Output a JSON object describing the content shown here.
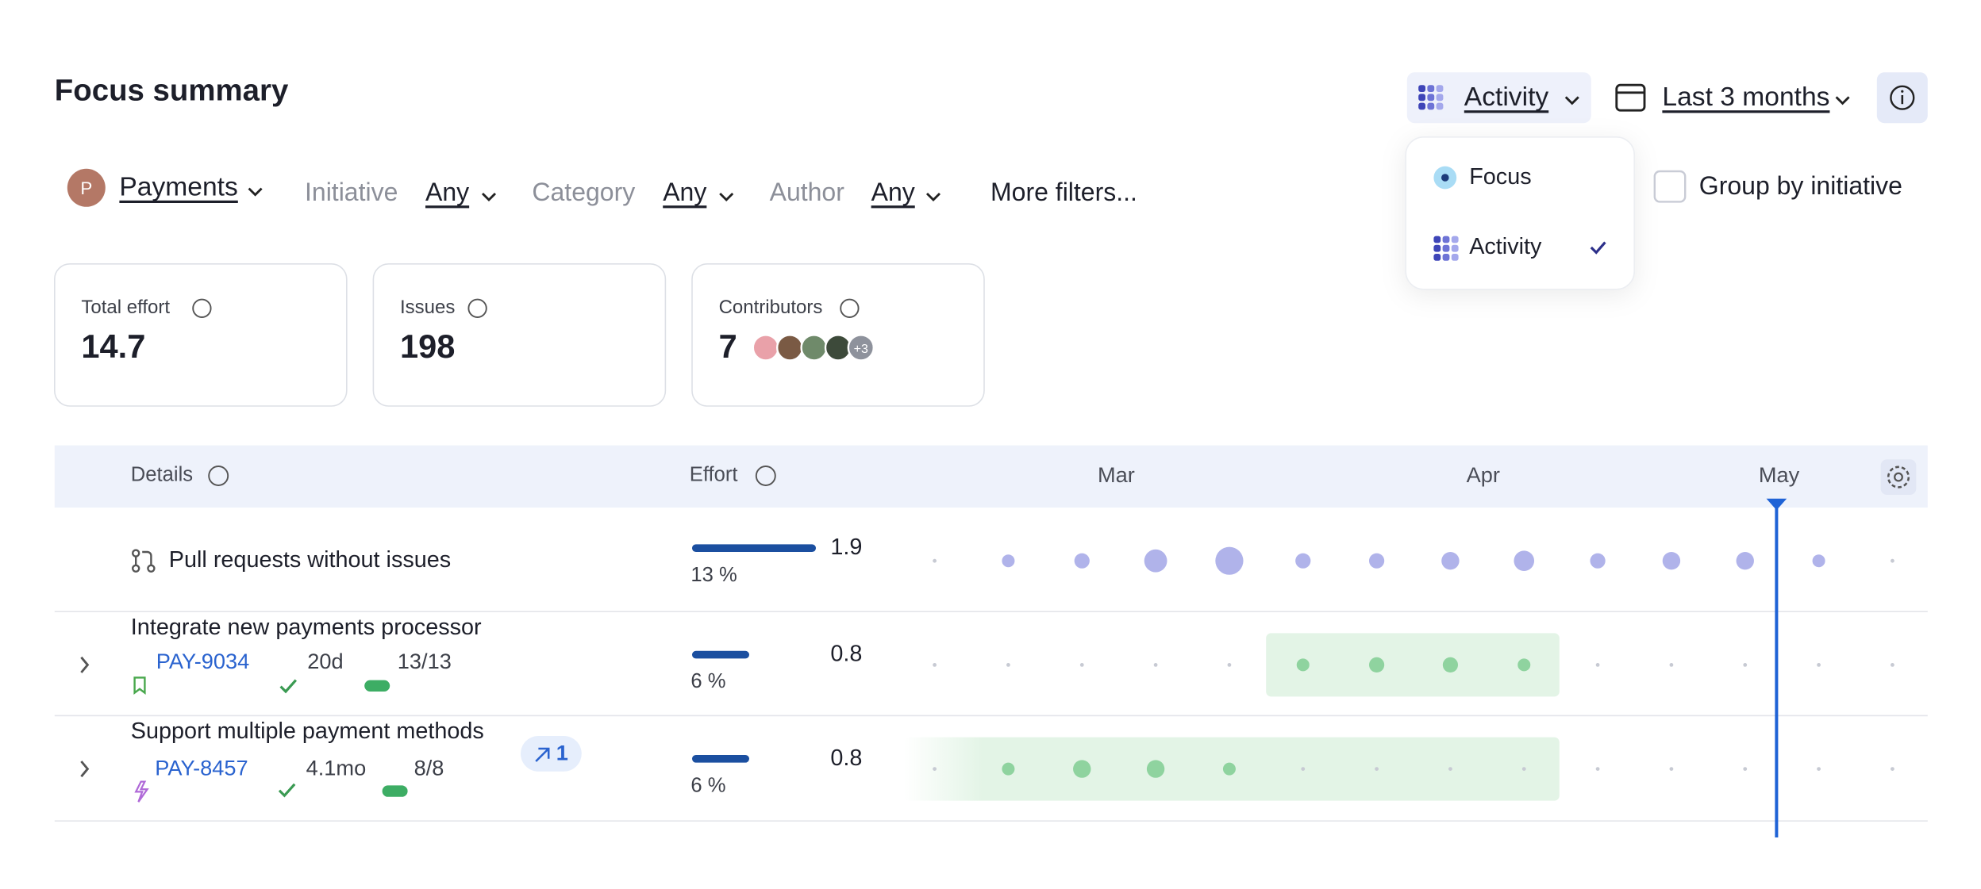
{
  "header": {
    "title": "Focus summary",
    "view": "Activity",
    "date_range": "Last 3 months"
  },
  "view_menu": {
    "items": [
      {
        "label": "Focus",
        "selected": false
      },
      {
        "label": "Activity",
        "selected": true
      }
    ]
  },
  "group_by": {
    "label": "Group by initiative",
    "checked": false
  },
  "filters": {
    "team_initial": "P",
    "team": "Payments",
    "items": [
      {
        "label": "Initiative",
        "value": "Any"
      },
      {
        "label": "Category",
        "value": "Any"
      },
      {
        "label": "Author",
        "value": "Any"
      }
    ],
    "more": "More filters..."
  },
  "stats": [
    {
      "label": "Total effort",
      "value": 14.7
    },
    {
      "label": "Issues",
      "value": 198
    },
    {
      "label": "Contributors",
      "value": 7,
      "extra": "+3"
    }
  ],
  "table": {
    "columns": {
      "details": "Details",
      "effort": "Effort",
      "months": [
        "Mar",
        "Apr",
        "May"
      ]
    },
    "rows": [
      {
        "title": "Pull requests without issues",
        "effort": 1.9,
        "share": 13,
        "share_label": "13 %",
        "color": "#b0b3ea",
        "activity": [
          0,
          5,
          6,
          9,
          11,
          6,
          6,
          7,
          8,
          6,
          7,
          7,
          5,
          0
        ]
      },
      {
        "title": "Integrate new payments processor",
        "key": "PAY-9034",
        "duration": "20d",
        "progress": "13/13",
        "effort": 0.8,
        "share": 6,
        "share_label": "6 %",
        "color": "#8fd39f",
        "activity": [
          0,
          0,
          0,
          0,
          0,
          5,
          6,
          6,
          5,
          0,
          0,
          0,
          0,
          0
        ]
      },
      {
        "title": "Support multiple payment methods",
        "badge": "1",
        "key": "PAY-8457",
        "duration": "4.1mo",
        "progress": "8/8",
        "effort": 0.8,
        "share": 6,
        "share_label": "6 %",
        "color": "#8fd39f",
        "activity": [
          0,
          5,
          7,
          7,
          5,
          0,
          0,
          0,
          0,
          0,
          0,
          0,
          0,
          0
        ]
      }
    ]
  }
}
